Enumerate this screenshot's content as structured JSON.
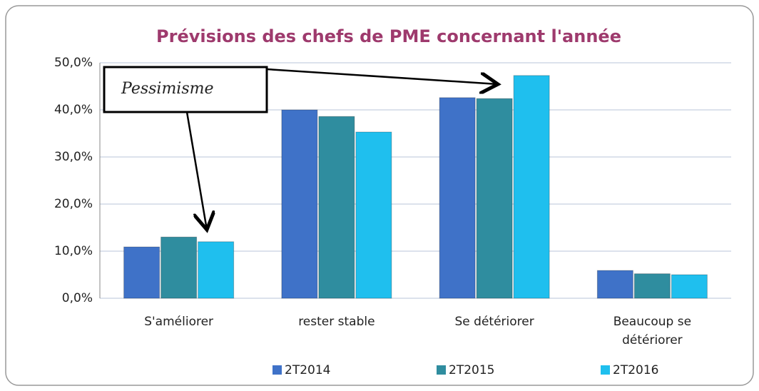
{
  "chart_data": {
    "type": "bar",
    "title": "Prévisions des chefs de PME concernant l'année",
    "categories": [
      "S'améliorer",
      "rester stable",
      "Se détériorer",
      "Beaucoup se détériorer"
    ],
    "series": [
      {
        "name": "2T2014",
        "color": "#3f72c8",
        "values": [
          10.9,
          40.0,
          42.6,
          5.9
        ]
      },
      {
        "name": "2T2015",
        "color": "#2f8d9f",
        "values": [
          13.0,
          38.6,
          42.4,
          5.2
        ]
      },
      {
        "name": "2T2016",
        "color": "#1fbfee",
        "values": [
          12.0,
          35.3,
          47.3,
          5.0
        ]
      }
    ],
    "ylim": [
      0,
      50
    ],
    "yticks": [
      {
        "value": 0,
        "label": "0,0%"
      },
      {
        "value": 10,
        "label": "10,0%"
      },
      {
        "value": 20,
        "label": "20,0%"
      },
      {
        "value": 30,
        "label": "30,0%"
      },
      {
        "value": 40,
        "label": "40,0%"
      },
      {
        "value": 50,
        "label": "50,0%"
      }
    ],
    "grid": true,
    "legend": "bottom",
    "annotation": "Pessimisme"
  }
}
